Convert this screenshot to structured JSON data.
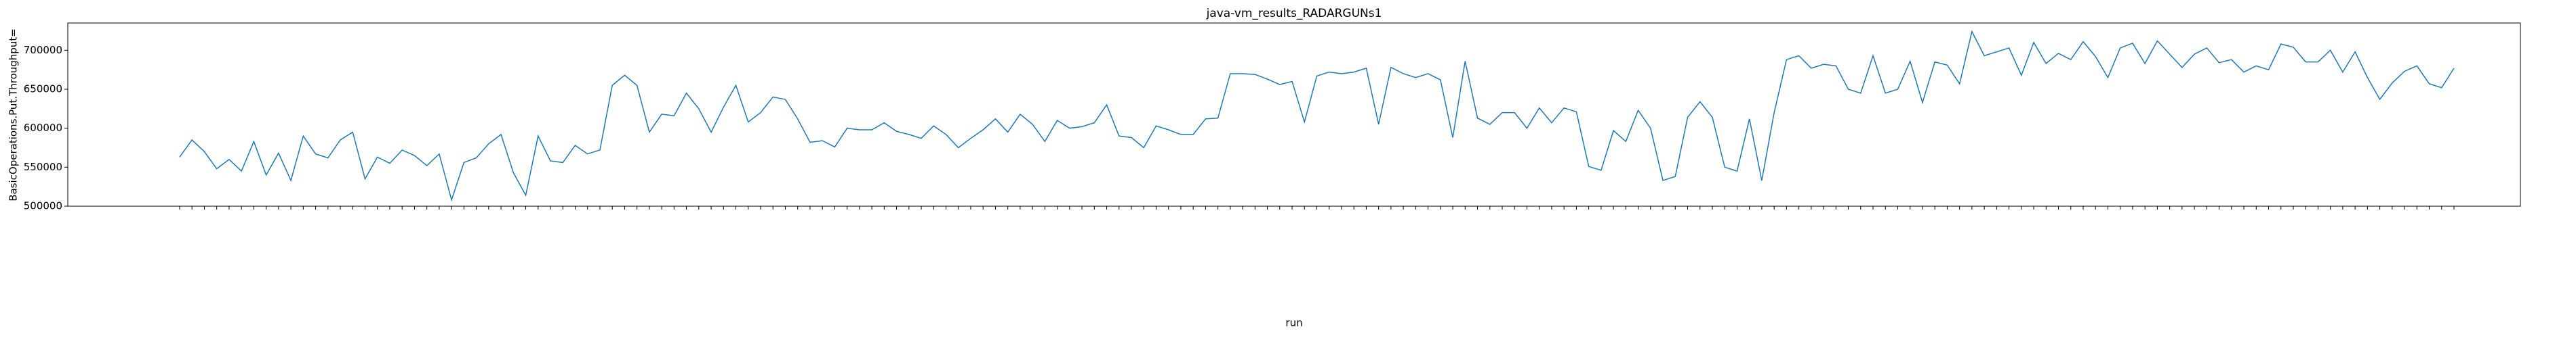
{
  "chart_data": {
    "type": "line",
    "title": "java-vm_results_RADARGUNs1",
    "x_label": "run",
    "y_label": "BasicOperations.Put.Throughput=",
    "categories": [
      null,
      null,
      null,
      null,
      null,
      null,
      null,
      null,
      null,
      null,
      null,
      null,
      null,
      null,
      null,
      null,
      null,
      null,
      null,
      null,
      null,
      null,
      null,
      null,
      null,
      null,
      null,
      null,
      null,
      null,
      null,
      null,
      null,
      null,
      null,
      null,
      null,
      null,
      null,
      null,
      null,
      null,
      null,
      null,
      null,
      null,
      null,
      null,
      null,
      null,
      null,
      null,
      null,
      null,
      null,
      null,
      null,
      null,
      null,
      null,
      null,
      null,
      null,
      null,
      null,
      null,
      null,
      null,
      null,
      null,
      null,
      null,
      null,
      null,
      null,
      null,
      null,
      null,
      null,
      null,
      null,
      null,
      null,
      null,
      null,
      null,
      null,
      null,
      null,
      null,
      null,
      null,
      null,
      null,
      null,
      null,
      null,
      null,
      null,
      null,
      null,
      null,
      null,
      null,
      null,
      null,
      null,
      null,
      null,
      null,
      null,
      null,
      null,
      null,
      null,
      null,
      null,
      null,
      null,
      null,
      null,
      null,
      null,
      null,
      null,
      null,
      null,
      null,
      null,
      null,
      null,
      null,
      null,
      null,
      null,
      null,
      null,
      null,
      null,
      null,
      null,
      null,
      null,
      null,
      null,
      null,
      null,
      null,
      null,
      null,
      null,
      null,
      null,
      null,
      null,
      null,
      null,
      null,
      null,
      null,
      null,
      null,
      null,
      null,
      null,
      null,
      null,
      null,
      null,
      null,
      null,
      null,
      null,
      null,
      null,
      null,
      null,
      null,
      null,
      null,
      null,
      null,
      null,
      null,
      null
    ],
    "series": [
      {
        "name": "BasicOperations.Put.Throughput=",
        "color": "#1f77b4",
        "values": [
          563000,
          585000,
          570000,
          548000,
          560000,
          545000,
          583000,
          540000,
          568000,
          533000,
          590000,
          567000,
          562000,
          585000,
          595000,
          535000,
          563000,
          555000,
          572000,
          565000,
          552000,
          567000,
          508000,
          556000,
          562000,
          580000,
          592000,
          543000,
          514000,
          590000,
          558000,
          556000,
          578000,
          567000,
          572000,
          655000,
          668000,
          655000,
          595000,
          618000,
          616000,
          645000,
          625000,
          595000,
          627000,
          655000,
          608000,
          620000,
          640000,
          637000,
          612000,
          582000,
          584000,
          576000,
          600000,
          598000,
          598000,
          607000,
          596000,
          592000,
          587000,
          603000,
          592000,
          575000,
          587000,
          598000,
          612000,
          595000,
          618000,
          605000,
          583000,
          610000,
          600000,
          602000,
          607000,
          630000,
          590000,
          588000,
          575000,
          603000,
          598000,
          592000,
          592000,
          612000,
          613000,
          670000,
          670000,
          669000,
          663000,
          656000,
          660000,
          608000,
          667000,
          672000,
          670000,
          672000,
          677000,
          605000,
          678000,
          670000,
          665000,
          670000,
          662000,
          588000,
          686000,
          613000,
          605000,
          620000,
          620000,
          600000,
          626000,
          607000,
          626000,
          621000,
          551000,
          546000,
          597000,
          583000,
          623000,
          600000,
          533000,
          538000,
          614000,
          634000,
          614000,
          550000,
          545000,
          612000,
          533000,
          620000,
          688000,
          693000,
          677000,
          682000,
          680000,
          650000,
          645000,
          693000,
          645000,
          650000,
          686000,
          633000,
          685000,
          681000,
          657000,
          724000,
          693000,
          698000,
          703000,
          668000,
          710000,
          683000,
          696000,
          688000,
          711000,
          692000,
          665000,
          703000,
          709000,
          683000,
          712000,
          695000,
          678000,
          695000,
          703000,
          684000,
          688000,
          672000,
          680000,
          675000,
          708000,
          704000,
          685000,
          685000,
          700000,
          672000,
          698000,
          665000,
          637000,
          658000,
          673000,
          680000,
          657000,
          652000,
          677000
        ]
      }
    ],
    "ylim": [
      500000,
      735000
    ],
    "yticks": [
      500000,
      550000,
      600000,
      650000,
      700000
    ],
    "grid": false
  }
}
